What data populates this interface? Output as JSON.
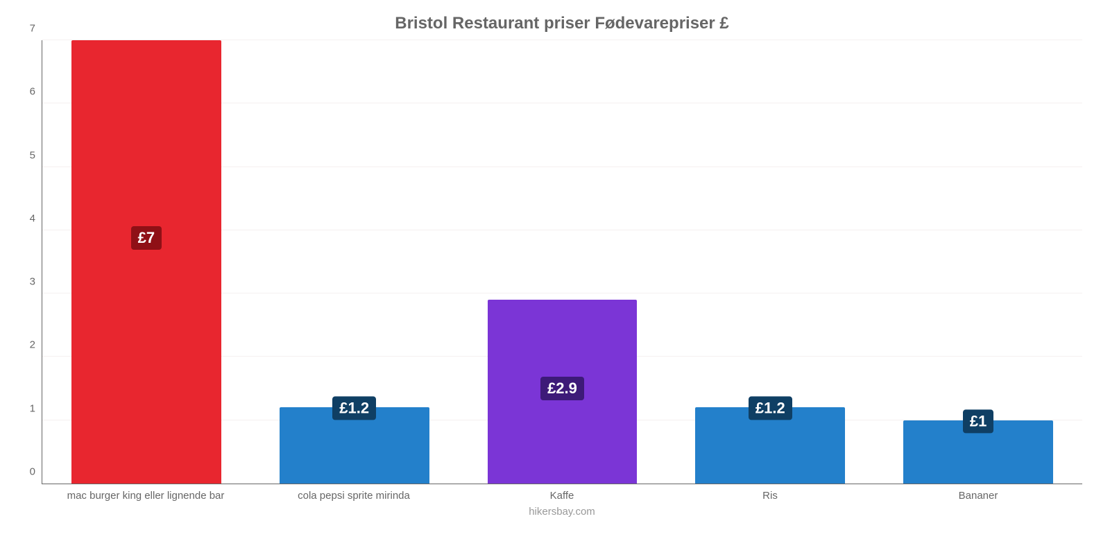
{
  "chart": {
    "type": "bar",
    "title": "Bristol Restaurant priser Fødevarepriser £",
    "title_fontsize": 24,
    "title_color": "#666666",
    "background_color": "#ffffff",
    "axis_color": "#666666",
    "grid_color": "#f5f0f0",
    "label_fontsize": 15,
    "xlabel_color": "#666666",
    "ylabel_color": "#666666",
    "value_badge_fontsize": 22,
    "value_badge_text_color": "#ffffff",
    "ylim": [
      0,
      7
    ],
    "ytick_step": 1,
    "yticks": [
      0,
      1,
      2,
      3,
      4,
      5,
      6,
      7
    ],
    "bar_width_pct": 72,
    "categories": [
      "mac burger king eller lignende bar",
      "cola pepsi sprite mirinda",
      "Kaffe",
      "Ris",
      "Bananer"
    ],
    "values": [
      7,
      1.2,
      2.9,
      1.2,
      1.0
    ],
    "value_labels": [
      "£7",
      "£1.2",
      "£2.9",
      "£1.2",
      "£1"
    ],
    "bar_colors": [
      "#e8262f",
      "#2380cb",
      "#7b35d6",
      "#2380cb",
      "#2380cb"
    ],
    "badge_colors": [
      "#8f1016",
      "#0f3f64",
      "#3d1a78",
      "#0f3f64",
      "#0f3f64"
    ],
    "footer": "hikersbay.com",
    "footer_color": "#999999",
    "footer_fontsize": 15
  }
}
